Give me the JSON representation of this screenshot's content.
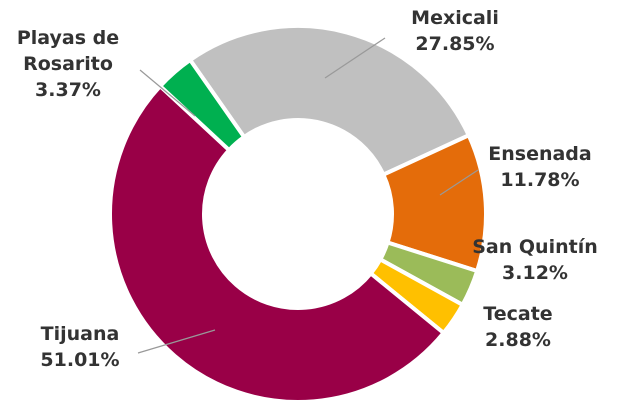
{
  "chart_data": {
    "type": "donut",
    "categories": [
      "Mexicali",
      "Ensenada",
      "San Quintín",
      "Tecate",
      "Tijuana",
      "Playas de Rosarito"
    ],
    "values": [
      27.85,
      11.78,
      3.12,
      2.88,
      51.01,
      3.37
    ],
    "value_labels": [
      "27.85%",
      "11.78%",
      "3.12%",
      "2.88%",
      "51.01%",
      "3.37%"
    ],
    "colors": [
      "#c0c0c0",
      "#e46c0a",
      "#9bbb59",
      "#ffc000",
      "#990047",
      "#00b050"
    ]
  }
}
